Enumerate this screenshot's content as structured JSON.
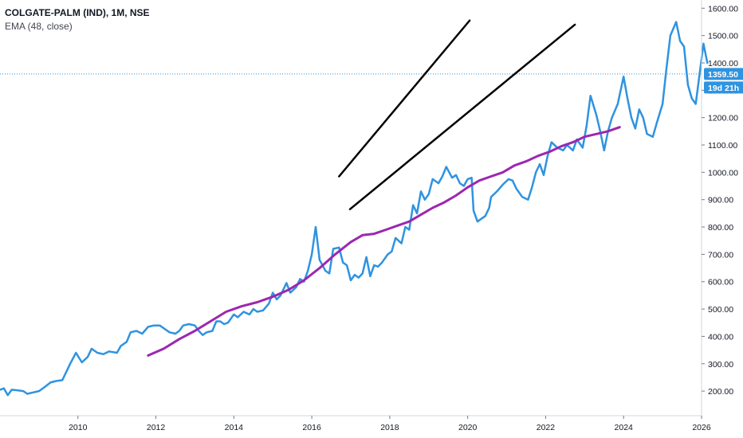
{
  "legend": {
    "symbol": "COLGATE-PALM (IND), 1M, NSE",
    "indicator": "EMA (48, close)"
  },
  "price_label": "1359.50",
  "countdown_label": "19d 21h",
  "colors": {
    "price_line": "#2f93e0",
    "ema_line": "#9c27b0",
    "trendline": "#000000",
    "price_tag": "#2f93e0",
    "axis_border": "#d1d4dc"
  },
  "chart_data": {
    "type": "line",
    "xlim": [
      2008.0,
      2026.0
    ],
    "ylim": [
      110,
      1630
    ],
    "xticks": [
      2010,
      2012,
      2014,
      2016,
      2018,
      2020,
      2022,
      2024,
      2026
    ],
    "xtick_labels": [
      "2010",
      "2012",
      "2014",
      "2016",
      "2018",
      "2020",
      "2022",
      "2024",
      "2026"
    ],
    "yticks": [
      200,
      300,
      400,
      500,
      600,
      700,
      800,
      900,
      1000,
      1100,
      1200,
      1300,
      1400,
      1500,
      1600
    ],
    "ytick_labels": [
      "200.00",
      "300.00",
      "400.00",
      "500.00",
      "600.00",
      "700.00",
      "800.00",
      "900.00",
      "1000.00",
      "1100.00",
      "1200.00",
      "1300.00",
      "1400.00",
      "1500.00",
      "1600.00"
    ],
    "last_price": 1359.5,
    "series": [
      {
        "key": "price",
        "points": [
          [
            2008.0,
            205
          ],
          [
            2008.1,
            210
          ],
          [
            2008.2,
            185
          ],
          [
            2008.3,
            205
          ],
          [
            2008.45,
            203
          ],
          [
            2008.6,
            200
          ],
          [
            2008.7,
            190
          ],
          [
            2008.85,
            195
          ],
          [
            2009.0,
            200
          ],
          [
            2009.15,
            215
          ],
          [
            2009.3,
            232
          ],
          [
            2009.45,
            237
          ],
          [
            2009.6,
            240
          ],
          [
            2009.8,
            300
          ],
          [
            2009.95,
            340
          ],
          [
            2010.1,
            305
          ],
          [
            2010.25,
            325
          ],
          [
            2010.35,
            355
          ],
          [
            2010.5,
            340
          ],
          [
            2010.65,
            335
          ],
          [
            2010.8,
            345
          ],
          [
            2011.0,
            340
          ],
          [
            2011.1,
            365
          ],
          [
            2011.25,
            380
          ],
          [
            2011.35,
            415
          ],
          [
            2011.5,
            420
          ],
          [
            2011.65,
            410
          ],
          [
            2011.8,
            435
          ],
          [
            2011.95,
            440
          ],
          [
            2012.1,
            440
          ],
          [
            2012.2,
            430
          ],
          [
            2012.35,
            415
          ],
          [
            2012.5,
            410
          ],
          [
            2012.6,
            420
          ],
          [
            2012.7,
            440
          ],
          [
            2012.85,
            445
          ],
          [
            2013.0,
            440
          ],
          [
            2013.1,
            420
          ],
          [
            2013.2,
            405
          ],
          [
            2013.3,
            415
          ],
          [
            2013.45,
            420
          ],
          [
            2013.55,
            455
          ],
          [
            2013.65,
            455
          ],
          [
            2013.75,
            445
          ],
          [
            2013.85,
            450
          ],
          [
            2014.0,
            480
          ],
          [
            2014.1,
            470
          ],
          [
            2014.25,
            490
          ],
          [
            2014.4,
            480
          ],
          [
            2014.5,
            500
          ],
          [
            2014.6,
            490
          ],
          [
            2014.75,
            495
          ],
          [
            2014.9,
            520
          ],
          [
            2015.0,
            560
          ],
          [
            2015.1,
            535
          ],
          [
            2015.2,
            550
          ],
          [
            2015.35,
            595
          ],
          [
            2015.45,
            560
          ],
          [
            2015.6,
            580
          ],
          [
            2015.7,
            610
          ],
          [
            2015.8,
            600
          ],
          [
            2015.9,
            640
          ],
          [
            2016.0,
            700
          ],
          [
            2016.1,
            800
          ],
          [
            2016.2,
            680
          ],
          [
            2016.35,
            640
          ],
          [
            2016.45,
            630
          ],
          [
            2016.55,
            720
          ],
          [
            2016.7,
            725
          ],
          [
            2016.8,
            670
          ],
          [
            2016.9,
            660
          ],
          [
            2017.0,
            605
          ],
          [
            2017.1,
            625
          ],
          [
            2017.2,
            615
          ],
          [
            2017.3,
            630
          ],
          [
            2017.4,
            690
          ],
          [
            2017.5,
            620
          ],
          [
            2017.6,
            660
          ],
          [
            2017.7,
            655
          ],
          [
            2017.8,
            670
          ],
          [
            2017.95,
            700
          ],
          [
            2018.05,
            710
          ],
          [
            2018.15,
            760
          ],
          [
            2018.3,
            740
          ],
          [
            2018.4,
            800
          ],
          [
            2018.5,
            790
          ],
          [
            2018.6,
            880
          ],
          [
            2018.7,
            850
          ],
          [
            2018.8,
            930
          ],
          [
            2018.9,
            900
          ],
          [
            2019.0,
            920
          ],
          [
            2019.1,
            975
          ],
          [
            2019.25,
            960
          ],
          [
            2019.35,
            985
          ],
          [
            2019.45,
            1020
          ],
          [
            2019.6,
            980
          ],
          [
            2019.7,
            990
          ],
          [
            2019.8,
            960
          ],
          [
            2019.9,
            950
          ],
          [
            2020.0,
            975
          ],
          [
            2020.1,
            980
          ],
          [
            2020.15,
            860
          ],
          [
            2020.25,
            820
          ],
          [
            2020.35,
            830
          ],
          [
            2020.45,
            840
          ],
          [
            2020.55,
            870
          ],
          [
            2020.6,
            910
          ],
          [
            2020.75,
            930
          ],
          [
            2020.9,
            955
          ],
          [
            2021.05,
            975
          ],
          [
            2021.15,
            970
          ],
          [
            2021.25,
            940
          ],
          [
            2021.4,
            910
          ],
          [
            2021.55,
            900
          ],
          [
            2021.65,
            945
          ],
          [
            2021.75,
            1000
          ],
          [
            2021.85,
            1030
          ],
          [
            2021.95,
            990
          ],
          [
            2022.05,
            1060
          ],
          [
            2022.15,
            1110
          ],
          [
            2022.3,
            1090
          ],
          [
            2022.45,
            1080
          ],
          [
            2022.55,
            1100
          ],
          [
            2022.7,
            1080
          ],
          [
            2022.8,
            1120
          ],
          [
            2022.95,
            1090
          ],
          [
            2023.05,
            1170
          ],
          [
            2023.15,
            1280
          ],
          [
            2023.3,
            1210
          ],
          [
            2023.4,
            1150
          ],
          [
            2023.5,
            1080
          ],
          [
            2023.6,
            1150
          ],
          [
            2023.7,
            1200
          ],
          [
            2023.85,
            1250
          ],
          [
            2024.0,
            1350
          ],
          [
            2024.1,
            1270
          ],
          [
            2024.2,
            1200
          ],
          [
            2024.3,
            1160
          ],
          [
            2024.4,
            1230
          ],
          [
            2024.5,
            1200
          ],
          [
            2024.6,
            1140
          ],
          [
            2024.75,
            1130
          ],
          [
            2024.85,
            1180
          ],
          [
            2025.0,
            1250
          ],
          [
            2025.1,
            1380
          ],
          [
            2025.2,
            1500
          ],
          [
            2025.35,
            1550
          ],
          [
            2025.45,
            1480
          ],
          [
            2025.55,
            1460
          ],
          [
            2025.65,
            1320
          ],
          [
            2025.75,
            1270
          ],
          [
            2025.85,
            1250
          ],
          [
            2025.95,
            1360
          ],
          [
            2026.05,
            1470
          ],
          [
            2026.15,
            1400
          ]
        ]
      },
      {
        "key": "ema",
        "points": [
          [
            2011.8,
            330
          ],
          [
            2012.2,
            355
          ],
          [
            2012.6,
            390
          ],
          [
            2013.0,
            420
          ],
          [
            2013.4,
            455
          ],
          [
            2013.8,
            490
          ],
          [
            2014.2,
            510
          ],
          [
            2014.6,
            525
          ],
          [
            2015.0,
            545
          ],
          [
            2015.4,
            570
          ],
          [
            2015.8,
            605
          ],
          [
            2016.2,
            650
          ],
          [
            2016.6,
            700
          ],
          [
            2017.0,
            745
          ],
          [
            2017.3,
            770
          ],
          [
            2017.6,
            775
          ],
          [
            2017.9,
            790
          ],
          [
            2018.2,
            805
          ],
          [
            2018.5,
            820
          ],
          [
            2018.8,
            845
          ],
          [
            2019.1,
            870
          ],
          [
            2019.4,
            890
          ],
          [
            2019.7,
            915
          ],
          [
            2020.0,
            945
          ],
          [
            2020.3,
            970
          ],
          [
            2020.6,
            985
          ],
          [
            2020.9,
            1000
          ],
          [
            2021.2,
            1025
          ],
          [
            2021.5,
            1040
          ],
          [
            2021.8,
            1060
          ],
          [
            2022.1,
            1075
          ],
          [
            2022.4,
            1095
          ],
          [
            2022.7,
            1110
          ],
          [
            2023.0,
            1130
          ],
          [
            2023.3,
            1140
          ],
          [
            2023.6,
            1150
          ],
          [
            2023.9,
            1165
          ]
        ]
      }
    ],
    "trendlines": [
      {
        "from": [
          2016.7,
          985
        ],
        "to": [
          2020.05,
          1555
        ]
      },
      {
        "from": [
          2016.98,
          865
        ],
        "to": [
          2022.75,
          1540
        ]
      }
    ]
  }
}
